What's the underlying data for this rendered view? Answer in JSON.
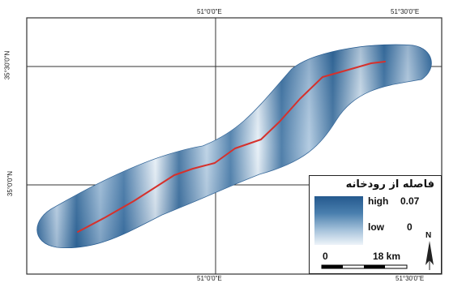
{
  "coords": {
    "top_left": "51°0'0\"E",
    "top_right": "51°30'0\"E",
    "bottom_left": "51°0'0\"E",
    "bottom_right": "51°30'0\"E",
    "left_upper": "35°30'0\"N",
    "left_lower": "35°0'0\"N"
  },
  "legend": {
    "title": "فاصله از رودخانه",
    "high_label": "high",
    "high_value": "0.07",
    "low_label": "low",
    "low_value": "0"
  },
  "scale": {
    "start": "0",
    "end": "18 km"
  },
  "north": {
    "label": "N"
  },
  "colors": {
    "band_dark": "#2a5f94",
    "band_light": "#e8f0f7",
    "river": "#d6312c"
  }
}
